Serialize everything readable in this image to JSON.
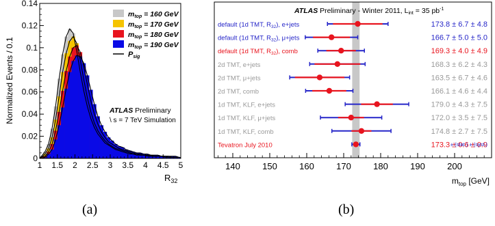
{
  "captions": [
    "(a)",
    "(b)"
  ],
  "chart_data": [
    {
      "type": "area",
      "xlabel": "R",
      "xlabel_sub": "32",
      "ylabel": "Normalized Events / 0.1",
      "xlim": [
        1,
        5
      ],
      "ylim": [
        0,
        0.14
      ],
      "xticks": [
        "1",
        "1.5",
        "2",
        "2.5",
        "3",
        "3.5",
        "4",
        "4.5",
        "5"
      ],
      "yticks": [
        "0",
        "0.02",
        "0.04",
        "0.06",
        "0.08",
        "0.1",
        "0.12",
        "0.14"
      ],
      "x": [
        1.05,
        1.15,
        1.25,
        1.35,
        1.45,
        1.55,
        1.65,
        1.75,
        1.85,
        1.95,
        2.05,
        2.15,
        2.25,
        2.35,
        2.45,
        2.55,
        2.65,
        2.75,
        2.85,
        2.95,
        3.05,
        3.15,
        3.25,
        3.35,
        3.45,
        3.55,
        3.65,
        3.75,
        3.85,
        3.95,
        4.05,
        4.15,
        4.25,
        4.35,
        4.45,
        4.55,
        4.65,
        4.75,
        4.85,
        4.95
      ],
      "series": [
        {
          "name_prefix": "m",
          "name_sub": "top",
          "name_suffix": " = 160 GeV",
          "color": "#c8c8c8",
          "values": [
            0.002,
            0.006,
            0.013,
            0.027,
            0.047,
            0.072,
            0.094,
            0.11,
            0.117,
            0.113,
            0.097,
            0.078,
            0.061,
            0.047,
            0.036,
            0.028,
            0.022,
            0.018,
            0.014,
            0.012,
            0.01,
            0.008,
            0.007,
            0.006,
            0.005,
            0.004,
            0.004,
            0.003,
            0.003,
            0.003,
            0.002,
            0.002,
            0.002,
            0.002,
            0.002,
            0.001,
            0.001,
            0.001,
            0.001,
            0.001
          ]
        },
        {
          "name_prefix": "m",
          "name_sub": "top",
          "name_suffix": " = 170 GeV",
          "color": "#f5c400",
          "values": [
            0.001,
            0.004,
            0.009,
            0.019,
            0.035,
            0.056,
            0.078,
            0.095,
            0.106,
            0.11,
            0.104,
            0.089,
            0.071,
            0.055,
            0.042,
            0.032,
            0.025,
            0.02,
            0.016,
            0.013,
            0.011,
            0.009,
            0.008,
            0.007,
            0.006,
            0.005,
            0.004,
            0.004,
            0.003,
            0.003,
            0.003,
            0.002,
            0.002,
            0.002,
            0.002,
            0.002,
            0.001,
            0.001,
            0.001,
            0.001
          ]
        },
        {
          "name_prefix": "m",
          "name_sub": "top",
          "name_suffix": " = 180 GeV",
          "color": "#e8141e",
          "values": [
            0.001,
            0.002,
            0.006,
            0.013,
            0.025,
            0.042,
            0.061,
            0.079,
            0.092,
            0.1,
            0.102,
            0.096,
            0.083,
            0.067,
            0.052,
            0.04,
            0.031,
            0.024,
            0.019,
            0.015,
            0.013,
            0.011,
            0.009,
            0.008,
            0.007,
            0.006,
            0.005,
            0.004,
            0.004,
            0.003,
            0.003,
            0.003,
            0.002,
            0.002,
            0.002,
            0.002,
            0.002,
            0.001,
            0.001,
            0.001
          ]
        },
        {
          "name_prefix": "m",
          "name_sub": "top",
          "name_suffix": " = 190 GeV",
          "color": "#0a0ae6",
          "values": [
            0.0,
            0.001,
            0.004,
            0.008,
            0.017,
            0.03,
            0.046,
            0.063,
            0.078,
            0.088,
            0.093,
            0.092,
            0.086,
            0.075,
            0.062,
            0.049,
            0.038,
            0.03,
            0.024,
            0.019,
            0.016,
            0.013,
            0.011,
            0.01,
            0.008,
            0.007,
            0.006,
            0.005,
            0.005,
            0.004,
            0.004,
            0.003,
            0.003,
            0.003,
            0.002,
            0.002,
            0.002,
            0.002,
            0.002,
            0.001
          ]
        }
      ],
      "fit_legend_prefix": "P",
      "fit_legend_sub": "sig",
      "label_bold": "ATLAS",
      "label_rest": " Preliminary",
      "label_line2": "\\ s = 7 TeV Simulation"
    },
    {
      "type": "scatter",
      "xlabel": "m",
      "xlabel_sub": "top",
      "xlabel_unit": " [GeV]",
      "xlim": [
        135,
        210
      ],
      "xticks": [
        140,
        150,
        160,
        170,
        180,
        190,
        200
      ],
      "band": [
        172.3,
        174.3
      ],
      "header_bold": "ATLAS",
      "header_rest": " Preliminary  -  Winter 2011,  L",
      "header_sub": "int",
      "header_tail": " = 35 pb",
      "header_sup": "-1",
      "footnote": "± (stat.) ± (syst.)",
      "rows": [
        {
          "label": "default (1d TMT, R",
          "label_sub": "32",
          "label_tail": "), e+jets",
          "value": "173.8 ± 6.7 ± 4.8",
          "central": 173.8,
          "stat": 6.7,
          "tot": 8.2,
          "label_color": "#2525c8",
          "point_color": "#e8141e",
          "bar_color": "#2525c8"
        },
        {
          "label": "default (1d TMT, R",
          "label_sub": "32",
          "label_tail": "), μ+jets",
          "value": "166.7 ± 5.0 ± 5.0",
          "central": 166.7,
          "stat": 5.0,
          "tot": 7.1,
          "label_color": "#2525c8",
          "point_color": "#e8141e",
          "bar_color": "#2525c8"
        },
        {
          "label": "default (1d TMT, R",
          "label_sub": "32",
          "label_tail": "), comb",
          "value": "169.3 ± 4.0 ± 4.9",
          "central": 169.3,
          "stat": 4.0,
          "tot": 6.3,
          "label_color": "#e8141e",
          "point_color": "#e8141e",
          "bar_color": "#2525c8"
        },
        {
          "label": "2d TMT, e+jets",
          "value": "168.3 ± 6.2 ± 4.3",
          "central": 168.3,
          "stat": 6.2,
          "tot": 7.5,
          "label_color": "#999999",
          "point_color": "#e8141e",
          "bar_color": "#2525c8"
        },
        {
          "label": "2d TMT, μ+jets",
          "value": "163.5 ± 6.7 ± 4.6",
          "central": 163.5,
          "stat": 6.7,
          "tot": 8.1,
          "label_color": "#999999",
          "point_color": "#e8141e",
          "bar_color": "#2525c8"
        },
        {
          "label": "2d TMT, comb",
          "value": "166.1 ± 4.6 ± 4.4",
          "central": 166.1,
          "stat": 4.6,
          "tot": 6.4,
          "label_color": "#999999",
          "point_color": "#e8141e",
          "bar_color": "#2525c8"
        },
        {
          "label": "1d TMT, KLF, e+jets",
          "value": "179.0 ± 4.3 ± 7.5",
          "central": 179.0,
          "stat": 4.3,
          "tot": 8.6,
          "label_color": "#999999",
          "point_color": "#e8141e",
          "bar_color": "#2525c8"
        },
        {
          "label": "1d TMT, KLF, μ+jets",
          "value": "172.0 ± 3.5 ± 7.5",
          "central": 172.0,
          "stat": 3.5,
          "tot": 8.3,
          "label_color": "#999999",
          "point_color": "#e8141e",
          "bar_color": "#2525c8"
        },
        {
          "label": "1d TMT, KLF, comb",
          "value": "174.8 ± 2.7 ± 7.5",
          "central": 174.8,
          "stat": 2.7,
          "tot": 8.0,
          "label_color": "#999999",
          "point_color": "#e8141e",
          "bar_color": "#2525c8"
        },
        {
          "label": "Tevatron July 2010",
          "value": "173.3 ± 0.6 ± 0.9",
          "central": 173.3,
          "stat": 0.6,
          "tot": 1.1,
          "label_color": "#e8141e",
          "point_color": "#e8141e",
          "bar_color": "#2525c8"
        }
      ]
    }
  ]
}
